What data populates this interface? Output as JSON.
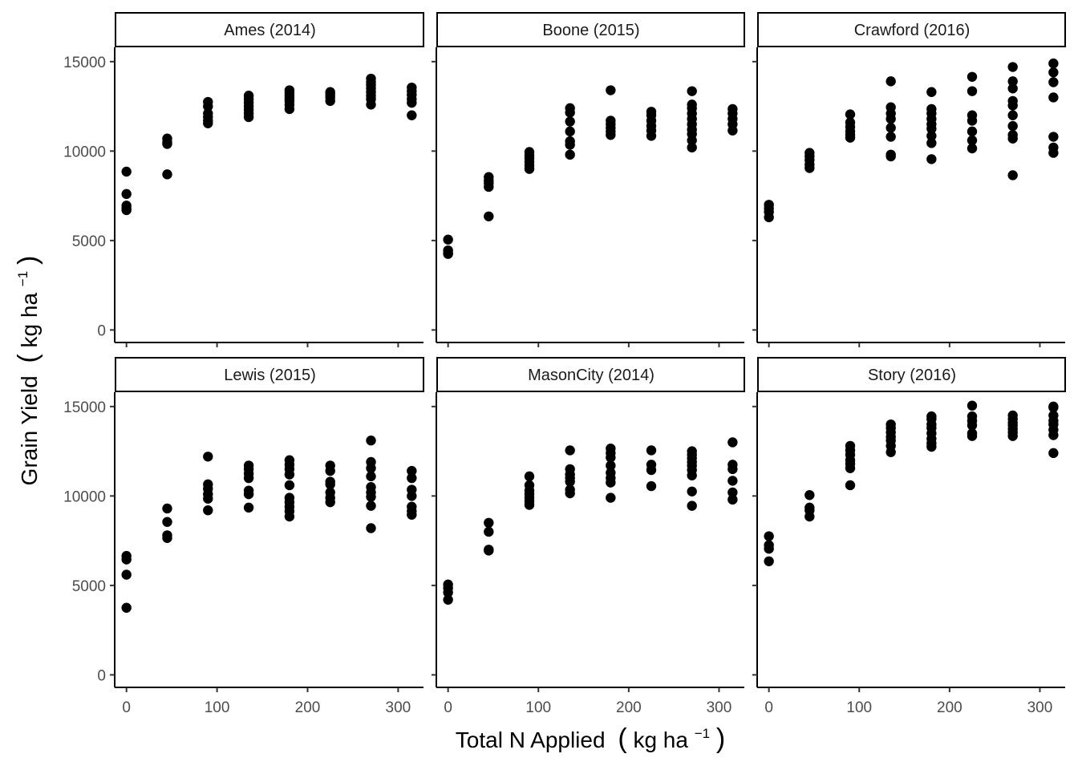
{
  "chart_data": {
    "type": "scatter",
    "layout": "facet-grid",
    "rows": 2,
    "cols": 3,
    "xlabel": {
      "main": "Total N Applied",
      "unit_open": "(",
      "unit_base": "kg ha",
      "unit_sup": "−1",
      "unit_close": ")"
    },
    "ylabel": {
      "main": "Grain Yield",
      "unit_open": "(",
      "unit_base": "kg ha",
      "unit_sup": "−1",
      "unit_close": ")"
    },
    "xlim": [
      -13,
      328
    ],
    "ylim": [
      -700,
      15800
    ],
    "xticks": [
      0,
      100,
      200,
      300
    ],
    "yticks": [
      0,
      5000,
      10000,
      15000
    ],
    "grid": false,
    "point_color": "#000000",
    "panels": [
      {
        "title": "Ames (2014)",
        "points": [
          [
            0,
            8850
          ],
          [
            0,
            7600
          ],
          [
            0,
            6950
          ],
          [
            0,
            6800
          ],
          [
            0,
            6700
          ],
          [
            45,
            10700
          ],
          [
            45,
            10500
          ],
          [
            45,
            10400
          ],
          [
            45,
            8700
          ],
          [
            90,
            12750
          ],
          [
            90,
            12500
          ],
          [
            90,
            12100
          ],
          [
            90,
            11900
          ],
          [
            90,
            11700
          ],
          [
            90,
            11550
          ],
          [
            135,
            13100
          ],
          [
            135,
            12900
          ],
          [
            135,
            12700
          ],
          [
            135,
            12500
          ],
          [
            135,
            12300
          ],
          [
            135,
            12100
          ],
          [
            135,
            11900
          ],
          [
            180,
            13400
          ],
          [
            180,
            13250
          ],
          [
            180,
            13100
          ],
          [
            180,
            12950
          ],
          [
            180,
            12800
          ],
          [
            180,
            12600
          ],
          [
            180,
            12350
          ],
          [
            225,
            13300
          ],
          [
            225,
            13150
          ],
          [
            225,
            13000
          ],
          [
            225,
            12800
          ],
          [
            270,
            14050
          ],
          [
            270,
            13850
          ],
          [
            270,
            13700
          ],
          [
            270,
            13500
          ],
          [
            270,
            13300
          ],
          [
            270,
            13100
          ],
          [
            270,
            12900
          ],
          [
            270,
            12600
          ],
          [
            315,
            13550
          ],
          [
            315,
            13350
          ],
          [
            315,
            13150
          ],
          [
            315,
            12900
          ],
          [
            315,
            12700
          ],
          [
            315,
            12000
          ]
        ]
      },
      {
        "title": "Boone (2015)",
        "points": [
          [
            0,
            5050
          ],
          [
            0,
            4450
          ],
          [
            0,
            4300
          ],
          [
            0,
            4250
          ],
          [
            45,
            8550
          ],
          [
            45,
            8350
          ],
          [
            45,
            8200
          ],
          [
            45,
            8000
          ],
          [
            45,
            6350
          ],
          [
            90,
            9950
          ],
          [
            90,
            9750
          ],
          [
            90,
            9600
          ],
          [
            90,
            9400
          ],
          [
            90,
            9200
          ],
          [
            90,
            9000
          ],
          [
            135,
            12400
          ],
          [
            135,
            12150
          ],
          [
            135,
            11650
          ],
          [
            135,
            11100
          ],
          [
            135,
            10550
          ],
          [
            135,
            10350
          ],
          [
            135,
            9800
          ],
          [
            180,
            13400
          ],
          [
            180,
            11700
          ],
          [
            180,
            11500
          ],
          [
            180,
            11300
          ],
          [
            180,
            11100
          ],
          [
            180,
            10900
          ],
          [
            225,
            12200
          ],
          [
            225,
            12000
          ],
          [
            225,
            11700
          ],
          [
            225,
            11400
          ],
          [
            225,
            11150
          ],
          [
            225,
            10850
          ],
          [
            270,
            13350
          ],
          [
            270,
            12600
          ],
          [
            270,
            12400
          ],
          [
            270,
            12100
          ],
          [
            270,
            11800
          ],
          [
            270,
            11500
          ],
          [
            270,
            11200
          ],
          [
            270,
            10950
          ],
          [
            270,
            10600
          ],
          [
            270,
            10200
          ],
          [
            315,
            12350
          ],
          [
            315,
            12100
          ],
          [
            315,
            11800
          ],
          [
            315,
            11500
          ],
          [
            315,
            11150
          ]
        ]
      },
      {
        "title": "Crawford (2016)",
        "points": [
          [
            0,
            7000
          ],
          [
            0,
            6800
          ],
          [
            0,
            6600
          ],
          [
            0,
            6300
          ],
          [
            45,
            9900
          ],
          [
            45,
            9700
          ],
          [
            45,
            9500
          ],
          [
            45,
            9250
          ],
          [
            45,
            9050
          ],
          [
            90,
            12050
          ],
          [
            90,
            11600
          ],
          [
            90,
            11350
          ],
          [
            90,
            11100
          ],
          [
            90,
            10900
          ],
          [
            90,
            10750
          ],
          [
            135,
            13900
          ],
          [
            135,
            12450
          ],
          [
            135,
            12100
          ],
          [
            135,
            11800
          ],
          [
            135,
            11300
          ],
          [
            135,
            10800
          ],
          [
            135,
            9800
          ],
          [
            135,
            9700
          ],
          [
            180,
            13300
          ],
          [
            180,
            12350
          ],
          [
            180,
            12100
          ],
          [
            180,
            11800
          ],
          [
            180,
            11500
          ],
          [
            180,
            11250
          ],
          [
            180,
            10850
          ],
          [
            180,
            10450
          ],
          [
            180,
            9550
          ],
          [
            225,
            14150
          ],
          [
            225,
            13350
          ],
          [
            225,
            12000
          ],
          [
            225,
            11700
          ],
          [
            225,
            11100
          ],
          [
            225,
            10600
          ],
          [
            225,
            10150
          ],
          [
            270,
            14700
          ],
          [
            270,
            13900
          ],
          [
            270,
            13500
          ],
          [
            270,
            12800
          ],
          [
            270,
            12550
          ],
          [
            270,
            12000
          ],
          [
            270,
            11400
          ],
          [
            270,
            10900
          ],
          [
            270,
            10700
          ],
          [
            270,
            8650
          ],
          [
            315,
            14900
          ],
          [
            315,
            14400
          ],
          [
            315,
            13850
          ],
          [
            315,
            13000
          ],
          [
            315,
            10800
          ],
          [
            315,
            10200
          ],
          [
            315,
            9900
          ]
        ]
      },
      {
        "title": "Lewis (2015)",
        "points": [
          [
            0,
            6650
          ],
          [
            0,
            6450
          ],
          [
            0,
            5600
          ],
          [
            0,
            3750
          ],
          [
            45,
            9300
          ],
          [
            45,
            8550
          ],
          [
            45,
            7800
          ],
          [
            45,
            7650
          ],
          [
            90,
            12200
          ],
          [
            90,
            10650
          ],
          [
            90,
            10400
          ],
          [
            90,
            10100
          ],
          [
            90,
            9850
          ],
          [
            90,
            9200
          ],
          [
            135,
            11700
          ],
          [
            135,
            11500
          ],
          [
            135,
            11250
          ],
          [
            135,
            11000
          ],
          [
            135,
            10300
          ],
          [
            135,
            10100
          ],
          [
            135,
            9350
          ],
          [
            180,
            12000
          ],
          [
            180,
            11750
          ],
          [
            180,
            11500
          ],
          [
            180,
            11200
          ],
          [
            180,
            10600
          ],
          [
            180,
            9900
          ],
          [
            180,
            9650
          ],
          [
            180,
            9400
          ],
          [
            180,
            9150
          ],
          [
            180,
            8850
          ],
          [
            225,
            11700
          ],
          [
            225,
            11400
          ],
          [
            225,
            10800
          ],
          [
            225,
            10650
          ],
          [
            225,
            10200
          ],
          [
            225,
            9900
          ],
          [
            225,
            9650
          ],
          [
            270,
            13100
          ],
          [
            270,
            11900
          ],
          [
            270,
            11550
          ],
          [
            270,
            11100
          ],
          [
            270,
            10500
          ],
          [
            270,
            10200
          ],
          [
            270,
            9950
          ],
          [
            270,
            9450
          ],
          [
            270,
            8200
          ],
          [
            315,
            11400
          ],
          [
            315,
            11000
          ],
          [
            315,
            10350
          ],
          [
            315,
            10000
          ],
          [
            315,
            9400
          ],
          [
            315,
            9150
          ],
          [
            315,
            8950
          ]
        ]
      },
      {
        "title": "MasonCity (2014)",
        "points": [
          [
            0,
            5050
          ],
          [
            0,
            4850
          ],
          [
            0,
            4600
          ],
          [
            0,
            4200
          ],
          [
            45,
            8500
          ],
          [
            45,
            8000
          ],
          [
            45,
            7000
          ],
          [
            45,
            6950
          ],
          [
            90,
            11100
          ],
          [
            90,
            10600
          ],
          [
            90,
            10300
          ],
          [
            90,
            10100
          ],
          [
            90,
            9900
          ],
          [
            90,
            9700
          ],
          [
            90,
            9500
          ],
          [
            135,
            12550
          ],
          [
            135,
            11500
          ],
          [
            135,
            11200
          ],
          [
            135,
            11000
          ],
          [
            135,
            10800
          ],
          [
            135,
            10350
          ],
          [
            135,
            10150
          ],
          [
            180,
            12650
          ],
          [
            180,
            12400
          ],
          [
            180,
            12150
          ],
          [
            180,
            11700
          ],
          [
            180,
            11300
          ],
          [
            180,
            11000
          ],
          [
            180,
            10750
          ],
          [
            180,
            9900
          ],
          [
            225,
            12550
          ],
          [
            225,
            11750
          ],
          [
            225,
            11450
          ],
          [
            225,
            10550
          ],
          [
            270,
            12500
          ],
          [
            270,
            12300
          ],
          [
            270,
            12100
          ],
          [
            270,
            11900
          ],
          [
            270,
            11700
          ],
          [
            270,
            11450
          ],
          [
            270,
            11150
          ],
          [
            270,
            10250
          ],
          [
            270,
            9450
          ],
          [
            315,
            13000
          ],
          [
            315,
            11750
          ],
          [
            315,
            11500
          ],
          [
            315,
            10850
          ],
          [
            315,
            10200
          ],
          [
            315,
            9800
          ]
        ]
      },
      {
        "title": "Story (2016)",
        "points": [
          [
            0,
            7750
          ],
          [
            0,
            7250
          ],
          [
            0,
            7050
          ],
          [
            0,
            6350
          ],
          [
            45,
            10050
          ],
          [
            45,
            9350
          ],
          [
            45,
            9200
          ],
          [
            45,
            8850
          ],
          [
            90,
            12800
          ],
          [
            90,
            12550
          ],
          [
            90,
            12300
          ],
          [
            90,
            12000
          ],
          [
            90,
            11800
          ],
          [
            90,
            11550
          ],
          [
            90,
            10600
          ],
          [
            135,
            14000
          ],
          [
            135,
            13800
          ],
          [
            135,
            13550
          ],
          [
            135,
            13300
          ],
          [
            135,
            13100
          ],
          [
            135,
            12800
          ],
          [
            135,
            12450
          ],
          [
            180,
            14450
          ],
          [
            180,
            14300
          ],
          [
            180,
            14000
          ],
          [
            180,
            13800
          ],
          [
            180,
            13500
          ],
          [
            180,
            13200
          ],
          [
            180,
            12950
          ],
          [
            180,
            12750
          ],
          [
            225,
            15050
          ],
          [
            225,
            14450
          ],
          [
            225,
            14200
          ],
          [
            225,
            13950
          ],
          [
            225,
            13500
          ],
          [
            225,
            13350
          ],
          [
            270,
            14500
          ],
          [
            270,
            14300
          ],
          [
            270,
            14100
          ],
          [
            270,
            13950
          ],
          [
            270,
            13750
          ],
          [
            270,
            13550
          ],
          [
            270,
            13350
          ],
          [
            315,
            15000
          ],
          [
            315,
            14950
          ],
          [
            315,
            14500
          ],
          [
            315,
            14200
          ],
          [
            315,
            14000
          ],
          [
            315,
            13700
          ],
          [
            315,
            13400
          ],
          [
            315,
            12400
          ]
        ]
      }
    ]
  }
}
